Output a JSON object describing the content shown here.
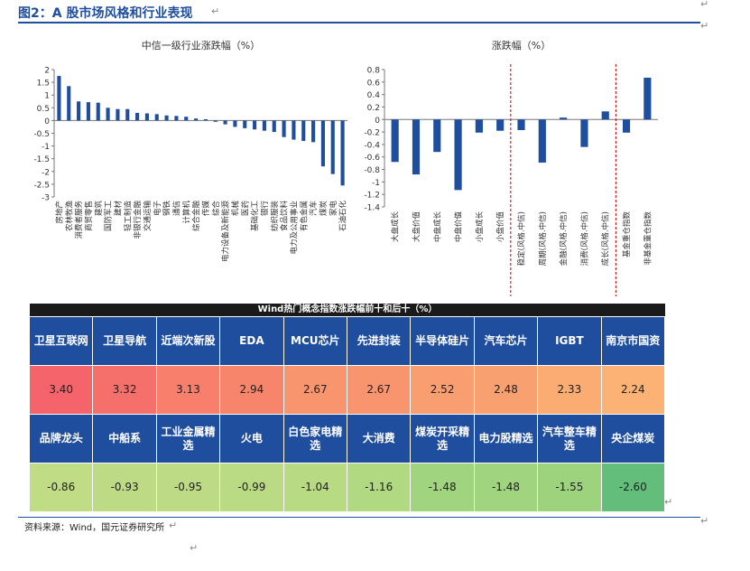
{
  "header": {
    "title": "图2：A 股市场风格和行业表现",
    "return_mark": "↵"
  },
  "chart_data": [
    {
      "type": "bar",
      "title": "中信一级行业涨跌幅（%）",
      "color": "#1f4e9e",
      "ylim": [
        -3,
        2
      ],
      "yticks": [
        "2",
        "1.5",
        "1",
        "0.5",
        "0",
        "-0.5",
        "-1",
        "-1.5",
        "-2",
        "-2.5",
        "-3"
      ],
      "categories": [
        "房地产",
        "农林牧渔",
        "消费者服务",
        "商贸零售",
        "建筑",
        "国防军工",
        "建材",
        "轻工制造",
        "非银行金融",
        "交通运输",
        "电子",
        "钢铁",
        "通信",
        "计算机",
        "综合金融",
        "传媒",
        "综合",
        "电力设备及新能源",
        "机械",
        "医药",
        "基础化工",
        "银行",
        "纺织服装",
        "食品饮料",
        "电力及公用事业",
        "有色金属",
        "汽车",
        "煤炭",
        "家电",
        "石油石化"
      ],
      "values": [
        1.75,
        1.35,
        0.75,
        0.72,
        0.7,
        0.5,
        0.45,
        0.45,
        0.3,
        0.28,
        0.25,
        0.2,
        0.18,
        0.15,
        0.08,
        0.05,
        -0.05,
        -0.15,
        -0.25,
        -0.3,
        -0.35,
        -0.4,
        -0.45,
        -0.65,
        -0.75,
        -0.8,
        -0.85,
        -1.8,
        -2.1,
        -2.55
      ]
    },
    {
      "type": "bar",
      "title": "涨跌幅（%）",
      "color": "#1f4e9e",
      "ylim": [
        -1.4,
        0.8
      ],
      "yticks": [
        "0.8",
        "0.6",
        "0.4",
        "0.2",
        "0",
        "-0.2",
        "-0.4",
        "-0.6",
        "-0.8",
        "-1",
        "-1.2",
        "-1.4"
      ],
      "categories": [
        "大盘成长",
        "大盘价值",
        "中盘成长",
        "中盘价值",
        "小盘成长",
        "小盘价值",
        "稳定(风格.中信)",
        "周期(风格.中信)",
        "金融(风格.中信)",
        "消费(风格.中信)",
        "成长(风格.中信)",
        "基金重仓指数",
        "非基金重仓指数"
      ],
      "values": [
        -0.68,
        -0.88,
        -0.52,
        -1.13,
        -0.21,
        -0.18,
        -0.17,
        -0.69,
        0.03,
        -0.44,
        0.13,
        -0.21,
        0.67
      ],
      "dividers_after": [
        5,
        10
      ]
    }
  ],
  "table": {
    "title": "Wind热门概念指数涨跌幅前十和后十（%）",
    "top_names": [
      "卫星互联网",
      "卫星导航",
      "近端次新股",
      "EDA",
      "MCU芯片",
      "先进封装",
      "半导体硅片",
      "汽车芯片",
      "IGBT",
      "南京市国资"
    ],
    "top_values": [
      "3.40",
      "3.32",
      "3.13",
      "2.94",
      "2.67",
      "2.67",
      "2.52",
      "2.48",
      "2.33",
      "2.24"
    ],
    "top_colors": [
      "#f4646a",
      "#f56f6b",
      "#f77f6c",
      "#f7856c",
      "#f8946e",
      "#f8946e",
      "#f99e70",
      "#f9a070",
      "#fbac72",
      "#fbb274"
    ],
    "bottom_names": [
      "品牌龙头",
      "中船系",
      "工业金属精选",
      "火电",
      "白色家电精选",
      "大消费",
      "煤炭开采精选",
      "电力股精选",
      "汽车整车精选",
      "央企煤炭"
    ],
    "bottom_values": [
      "-0.86",
      "-0.93",
      "-0.95",
      "-0.99",
      "-1.04",
      "-1.16",
      "-1.48",
      "-1.48",
      "-1.55",
      "-2.60"
    ],
    "bottom_colors": [
      "#c0dc85",
      "#bddb84",
      "#bcdb84",
      "#badb83",
      "#b7da82",
      "#b1d981",
      "#a0d47e",
      "#a0d47e",
      "#9dd37d",
      "#63be7b"
    ]
  },
  "source": "资料来源：Wind，国元证券研究所"
}
